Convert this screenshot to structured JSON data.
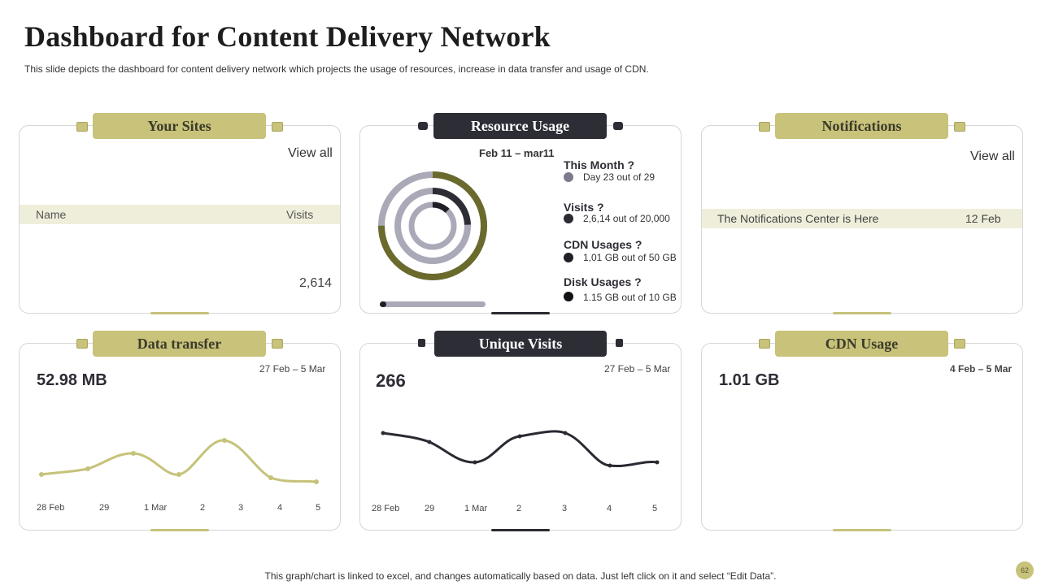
{
  "header": {
    "title": "Dashboard for Content Delivery Network",
    "subtitle": "This slide depicts the dashboard for content delivery network which projects the usage of resources, increase in data transfer and usage of CDN."
  },
  "your_sites": {
    "heading": "Your Sites",
    "view_all": "View all",
    "col_name": "Name",
    "col_visits": "Visits",
    "visits_value": "2,614"
  },
  "resource_usage": {
    "heading": "Resource Usage",
    "date_range": "Feb 11 – mar11",
    "items": [
      {
        "label": "This Month  ?",
        "detail": "Day 23 out of 29",
        "color": "#7b7b8c"
      },
      {
        "label": "Visits  ?",
        "detail": "2,6,14 out of 20,000",
        "color": "#2b2b33"
      },
      {
        "label": "CDN Usages  ?",
        "detail": "1,01 GB out of 50 GB",
        "color": "#1f1f27"
      },
      {
        "label": "Disk  Usages  ?",
        "detail": "1.15 GB out of 10 GB",
        "color": "#111116"
      }
    ],
    "progress": 0.05
  },
  "notifications": {
    "heading": "Notifications",
    "view_all": "View all",
    "row_text": "The Notifications Center is Here",
    "row_date": "12 Feb"
  },
  "data_transfer": {
    "heading": "Data transfer",
    "date_range": "27 Feb – 5 Mar",
    "value": "52.98 MB",
    "x_labels": [
      "28 Feb",
      "29",
      "1 Mar",
      "2",
      "3",
      "4",
      "5"
    ]
  },
  "unique_visits": {
    "heading": "Unique Visits",
    "date_range": "27 Feb – 5 Mar",
    "value": "266",
    "x_labels": [
      "28 Feb",
      "29",
      "1 Mar",
      "2",
      "3",
      "4",
      "5"
    ]
  },
  "cdn_usage": {
    "heading": "CDN Usage",
    "date_range": "4 Feb – 5 Mar",
    "value": "1.01 GB"
  },
  "footer": {
    "note": "This graph/chart is linked to excel,  and changes automatically based on data. Just left click on it and select “Edit Data”.",
    "page_number": "62"
  },
  "colors": {
    "olive": "#c8c27a",
    "dark_olive": "#6b6a2d",
    "dark": "#2d2d36",
    "ring_gray": "#a9a9b8"
  }
}
